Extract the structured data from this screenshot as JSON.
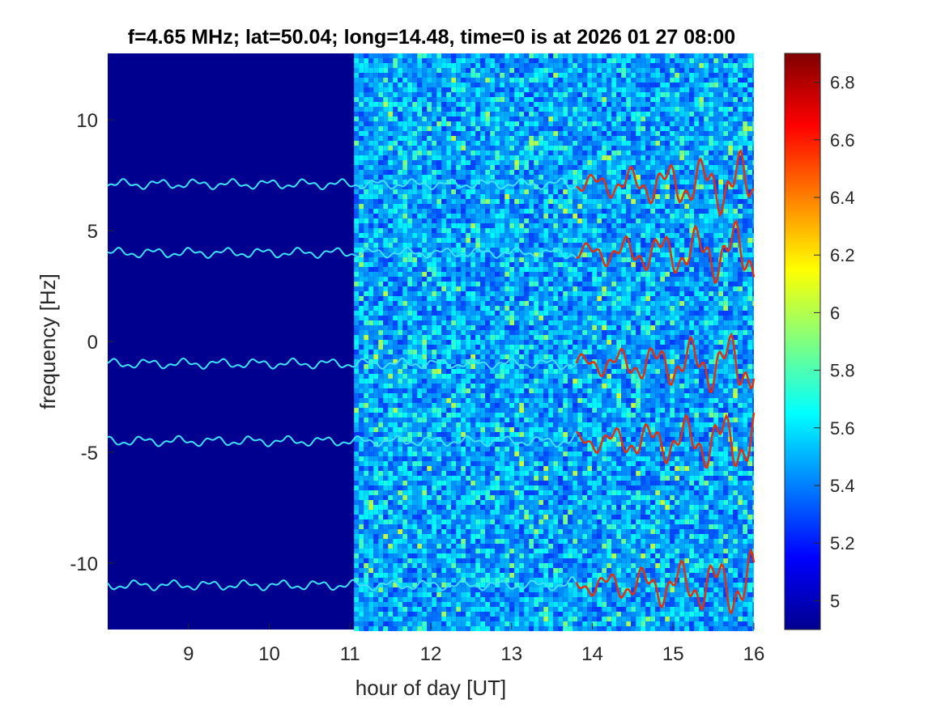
{
  "chart_data": {
    "type": "heatmap",
    "title": "f=4.65 MHz;  lat=50.04; long=14.48, time=0 is at 2026 01 27 08:00",
    "xlabel": "hour of day [UT]",
    "ylabel": "frequency [Hz]",
    "xlim": [
      8,
      16
    ],
    "ylim": [
      -13,
      13
    ],
    "x_ticks": [
      9,
      10,
      11,
      12,
      13,
      14,
      15,
      16
    ],
    "y_ticks": [
      -10,
      -5,
      0,
      5,
      10
    ],
    "colorbar": {
      "range": [
        4.9,
        6.9
      ],
      "ticks": [
        5,
        5.2,
        5.4,
        5.6,
        5.8,
        6,
        6.2,
        6.4,
        6.6,
        6.8
      ],
      "colormap": "jet"
    },
    "background_level": 4.9,
    "data_gap_until_hour": 11.05,
    "traces": [
      {
        "base_freq": 7.1
      },
      {
        "base_freq": 4.0
      },
      {
        "base_freq": -1.0
      },
      {
        "base_freq": -4.5
      },
      {
        "base_freq": -11.0
      }
    ],
    "grid": false
  }
}
